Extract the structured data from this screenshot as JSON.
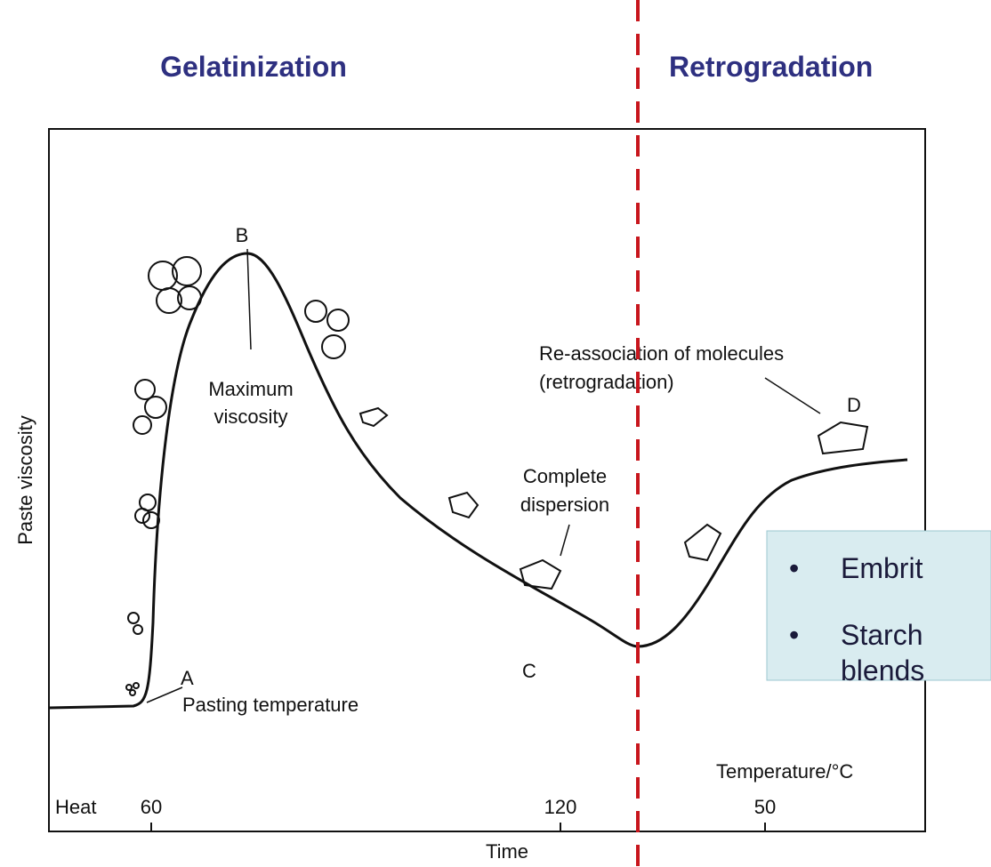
{
  "header": {
    "left": "Gelatinization",
    "right": "Retrogradation"
  },
  "diagram": {
    "y_axis_label": "Paste viscosity",
    "x_axis_label": "Time",
    "axis_marks": [
      "Heat",
      "60",
      "120",
      "50"
    ],
    "temperature_label": "Temperature/°C",
    "points": [
      "A",
      "B",
      "C",
      "D"
    ],
    "annotations": {
      "pasting": [
        "Pasting temperature"
      ],
      "maximum": [
        "Maximum",
        "viscosity"
      ],
      "dispersion": [
        "Complete",
        "dispersion"
      ],
      "reassociation": [
        "Re-association of molecules",
        "(retrogradation)"
      ]
    }
  },
  "bullets": [
    [
      "Embrit"
    ],
    [
      "Starch",
      "blends"
    ]
  ]
}
